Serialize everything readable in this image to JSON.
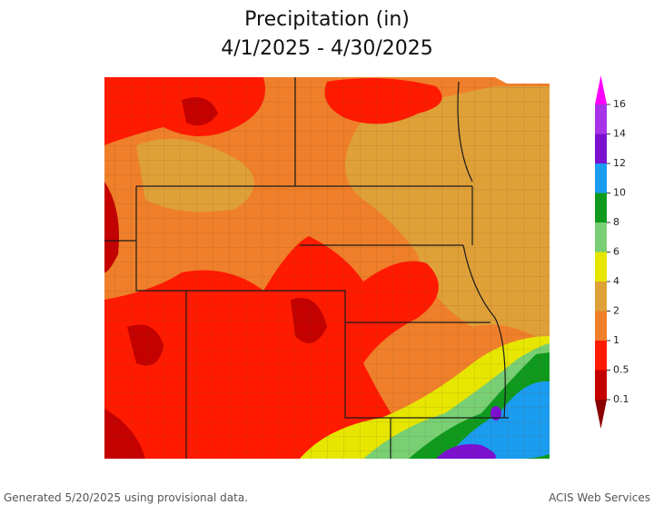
{
  "header": {
    "title": "Precipitation (in)",
    "subtitle": "4/1/2025 - 4/30/2025"
  },
  "legend": {
    "ticks": [
      0.1,
      0.5,
      1,
      2,
      4,
      6,
      8,
      10,
      12,
      14,
      16
    ],
    "colors": [
      "#8b0000",
      "#c40000",
      "#ff1a00",
      "#ef7f2a",
      "#dfa038",
      "#e6e600",
      "#78cf74",
      "#0f9a1e",
      "#1a9cf0",
      "#7b10d0",
      "#a933e6",
      "#ff00ff"
    ]
  },
  "footer": {
    "generated": "Generated 5/20/2025 using provisional data.",
    "source": "ACIS Web Services"
  }
}
